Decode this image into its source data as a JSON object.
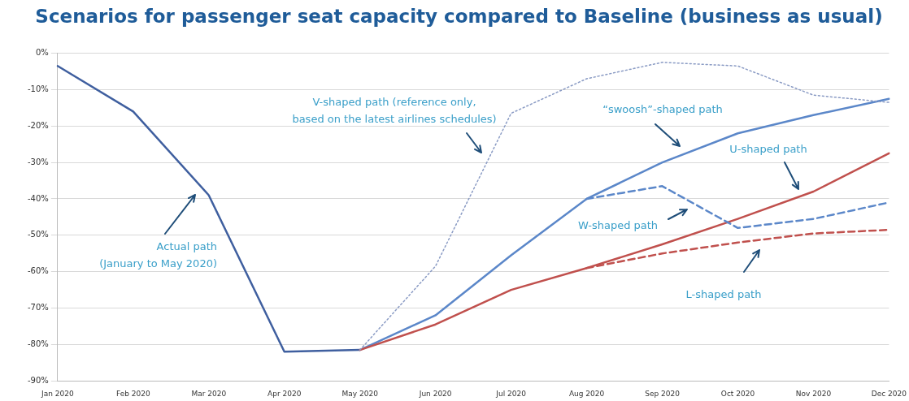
{
  "chart_data": {
    "type": "line",
    "title": "Scenarios for passenger seat capacity compared to Baseline (business as usual)",
    "categories": [
      "Jan 2020",
      "Feb 2020",
      "Mar 2020",
      "Apr 2020",
      "May 2020",
      "Jun 2020",
      "Jul 2020",
      "Aug 2020",
      "Sep 2020",
      "Oct 2020",
      "Nov 2020",
      "Dec 2020"
    ],
    "series": [
      {
        "color": "#8a9bc4",
        "line_style": "dotted",
        "values": [
          null,
          null,
          null,
          null,
          -81.5,
          -58.5,
          -16.5,
          -7,
          -2.5,
          -3.5,
          -11.5,
          -13.5
        ]
      },
      {
        "color": "#c0504d",
        "line_style": "dashed",
        "values": [
          null,
          null,
          null,
          null,
          null,
          null,
          null,
          -59,
          -55,
          -52,
          -49.5,
          -48.5
        ]
      },
      {
        "color": "#5b87c9",
        "line_style": "dashed",
        "values": [
          null,
          null,
          null,
          null,
          null,
          null,
          null,
          -40,
          -36.5,
          -48,
          -45.5,
          -41
        ]
      },
      {
        "color": "#c0504d",
        "line_style": "solid",
        "values": [
          null,
          null,
          null,
          null,
          -81.5,
          -74.5,
          -65,
          -59,
          -52.5,
          -45.5,
          -38,
          -27.5
        ]
      },
      {
        "color": "#5b87c9",
        "line_style": "solid",
        "values": [
          null,
          null,
          null,
          null,
          -81.5,
          -72,
          -55.5,
          -40,
          -30,
          -22,
          -17,
          -12.5
        ]
      },
      {
        "color": "#3f5f9f",
        "line_style": "solid",
        "values": [
          -3.5,
          -16,
          -39,
          -82,
          -81.5,
          null,
          null,
          null,
          null,
          null,
          null,
          null
        ]
      }
    ],
    "ylim": [
      -90,
      0
    ],
    "yticks": [
      {
        "value": -90,
        "label": "-90%"
      },
      {
        "value": -80,
        "label": "-80%"
      },
      {
        "value": -70,
        "label": "-70%"
      },
      {
        "value": -60,
        "label": "-60%"
      },
      {
        "value": -50,
        "label": "-50%"
      },
      {
        "value": -40,
        "label": "-40%"
      },
      {
        "value": -30,
        "label": "-30%"
      },
      {
        "value": -20,
        "label": "-20%"
      },
      {
        "value": -10,
        "label": "-10%"
      },
      {
        "value": 0,
        "label": "0%"
      }
    ],
    "grid": "y",
    "legend": false,
    "marker": "none",
    "annotations": [
      "Actual path\n(January to May 2020)",
      "V-shaped path (reference only,\nbased on the latest airlines schedules)",
      "“swoosh”-shaped path",
      "U-shaped path",
      "W-shaped path",
      "L-shaped path"
    ]
  }
}
